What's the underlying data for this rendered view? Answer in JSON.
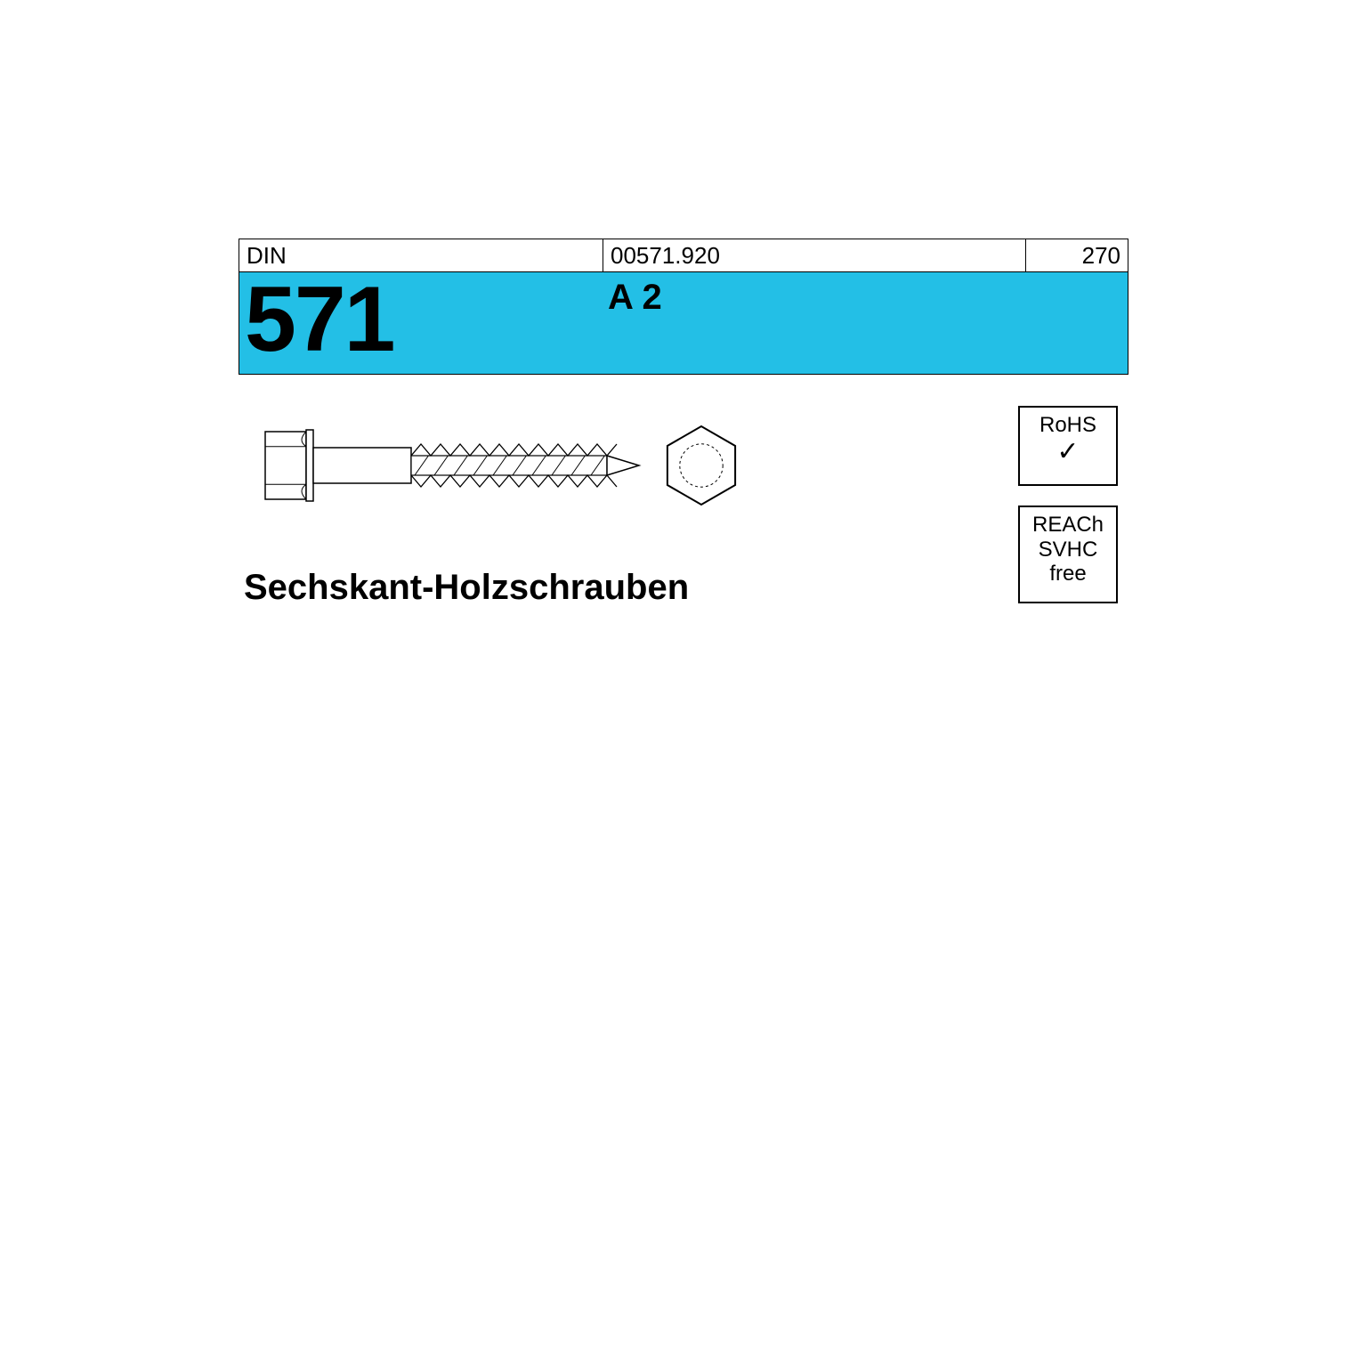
{
  "header": {
    "std_label": "DIN",
    "article_code": "00571.920",
    "page_number": "270",
    "din_number": "571",
    "material_grade": "A 2",
    "band_color": "#23bfe6",
    "border_color": "#000000",
    "text_color": "#000000"
  },
  "product": {
    "name": "Sechskant-Holzschrauben"
  },
  "badges": {
    "rohs": {
      "line1": "RoHS",
      "check": "✓"
    },
    "reach": {
      "line1": "REACh",
      "line2": "SVHC",
      "line3": "free"
    }
  },
  "drawing": {
    "stroke": "#000000",
    "fill": "#ffffff",
    "head_width": 46,
    "head_height": 76,
    "shank_len": 110,
    "thread_len": 220,
    "tip_len": 36,
    "dia": 40,
    "thread_pitch": 22,
    "hex_size": 44
  }
}
